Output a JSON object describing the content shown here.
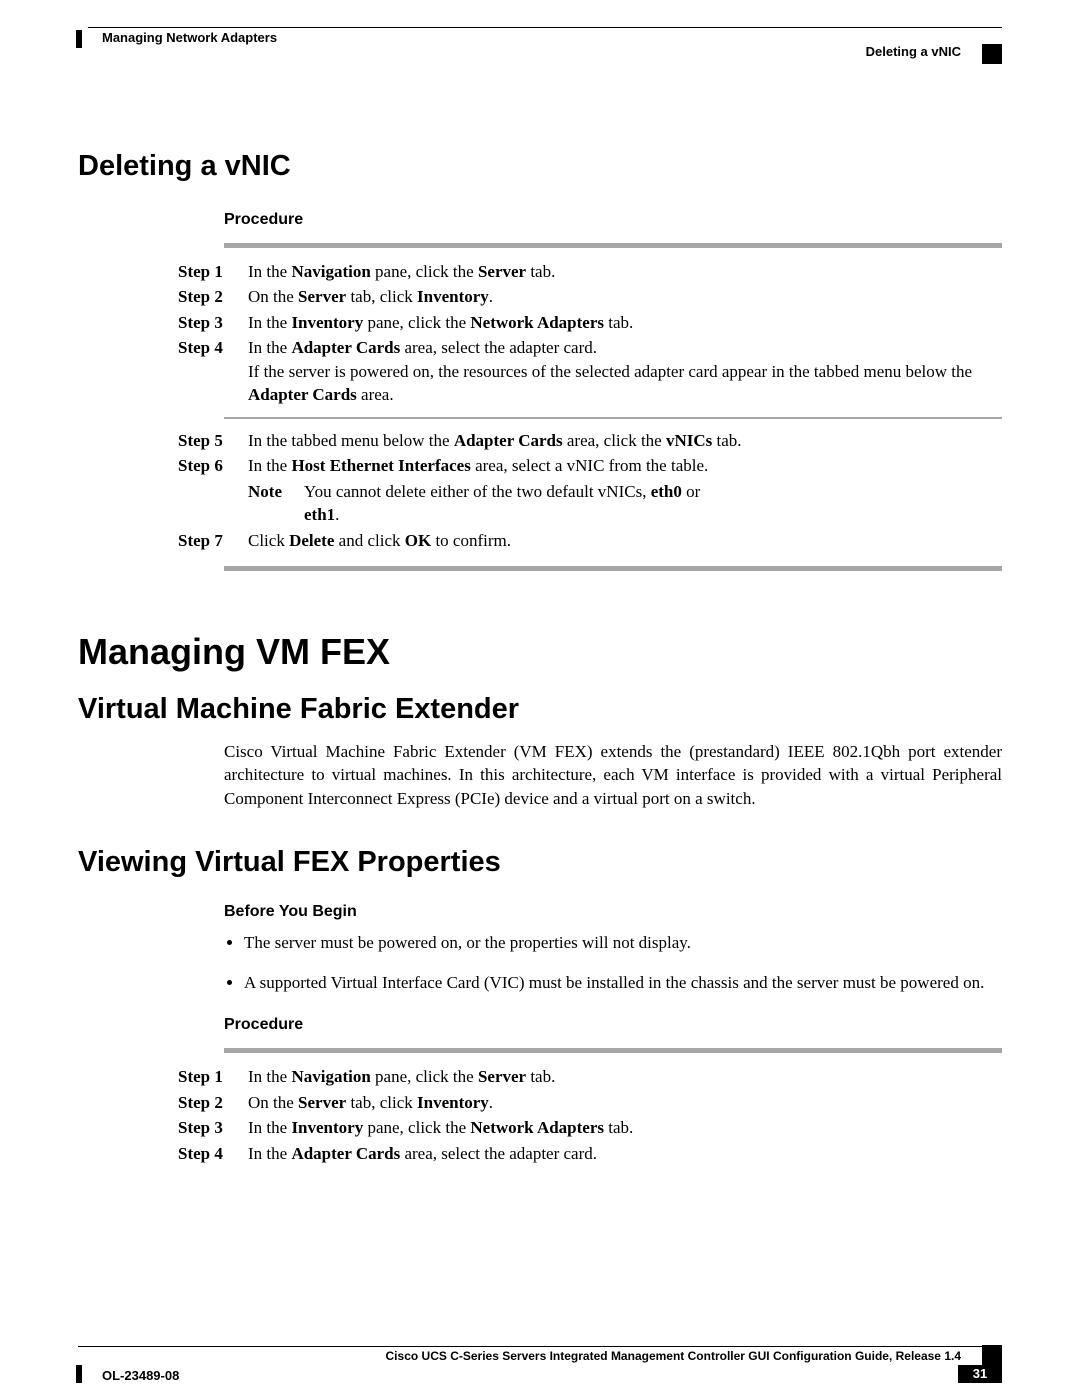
{
  "header": {
    "left_text": "Managing Network Adapters",
    "right_text": "Deleting a vNIC"
  },
  "section1": {
    "title": "Deleting a vNIC",
    "procedure_label": "Procedure",
    "steps": [
      {
        "label": "Step 1",
        "html": "In the <b>Navigation</b> pane, click the <b>Server</b> tab."
      },
      {
        "label": "Step 2",
        "html": "On the <b>Server</b> tab, click <b>Inventory</b>."
      },
      {
        "label": "Step 3",
        "html": "In the <b>Inventory</b> pane, click the <b>Network Adapters</b> tab."
      },
      {
        "label": "Step 4",
        "html": "In the <b>Adapter Cards</b> area, select the adapter card.<br>If the server is powered on, the resources of the selected adapter card appear in the tabbed menu below the <b>Adapter Cards</b> area."
      },
      {
        "label": "Step 5",
        "html": "In the tabbed menu below the <b>Adapter Cards</b> area, click the <b>vNICs</b> tab."
      },
      {
        "label": "Step 6",
        "html": "In the <b>Host Ethernet Interfaces</b> area, select a vNIC from the table.",
        "note_label": "Note",
        "note_html": "You cannot delete either of the two default vNICs, <b>eth0</b> or <b>eth1</b>."
      },
      {
        "label": "Step 7",
        "html": "Click <b>Delete</b> and click <b>OK</b> to confirm."
      }
    ]
  },
  "section2": {
    "h1": "Managing VM FEX",
    "sub1_title": "Virtual Machine Fabric Extender",
    "sub1_body": "Cisco Virtual Machine Fabric Extender (VM FEX) extends the (prestandard) IEEE 802.1Qbh port extender architecture to virtual machines. In this architecture, each VM interface is provided with a virtual Peripheral Component Interconnect Express (PCIe) device and a virtual port on a switch.",
    "sub2_title": "Viewing Virtual FEX Properties",
    "before_label": "Before You Begin",
    "bullets": [
      "The server must be powered on, or the properties will not display.",
      "A supported Virtual Interface Card (VIC) must be installed in the chassis and the server must be powered on."
    ],
    "procedure_label": "Procedure",
    "steps2": [
      {
        "label": "Step 1",
        "html": "In the <b>Navigation</b> pane, click the <b>Server</b> tab."
      },
      {
        "label": "Step 2",
        "html": "On the <b>Server</b> tab, click <b>Inventory</b>."
      },
      {
        "label": "Step 3",
        "html": "In the <b>Inventory</b> pane, click the <b>Network Adapters</b> tab."
      },
      {
        "label": "Step 4",
        "html": "In the <b>Adapter Cards</b> area, select the adapter card."
      }
    ]
  },
  "footer": {
    "title": "Cisco UCS C-Series Servers Integrated Management Controller GUI Configuration Guide, Release 1.4",
    "doc_id": "OL-23489-08",
    "page": "31"
  },
  "style": {
    "rule_color": "#a6a6a6",
    "text_color": "#000000",
    "page_bg": "#ffffff"
  }
}
